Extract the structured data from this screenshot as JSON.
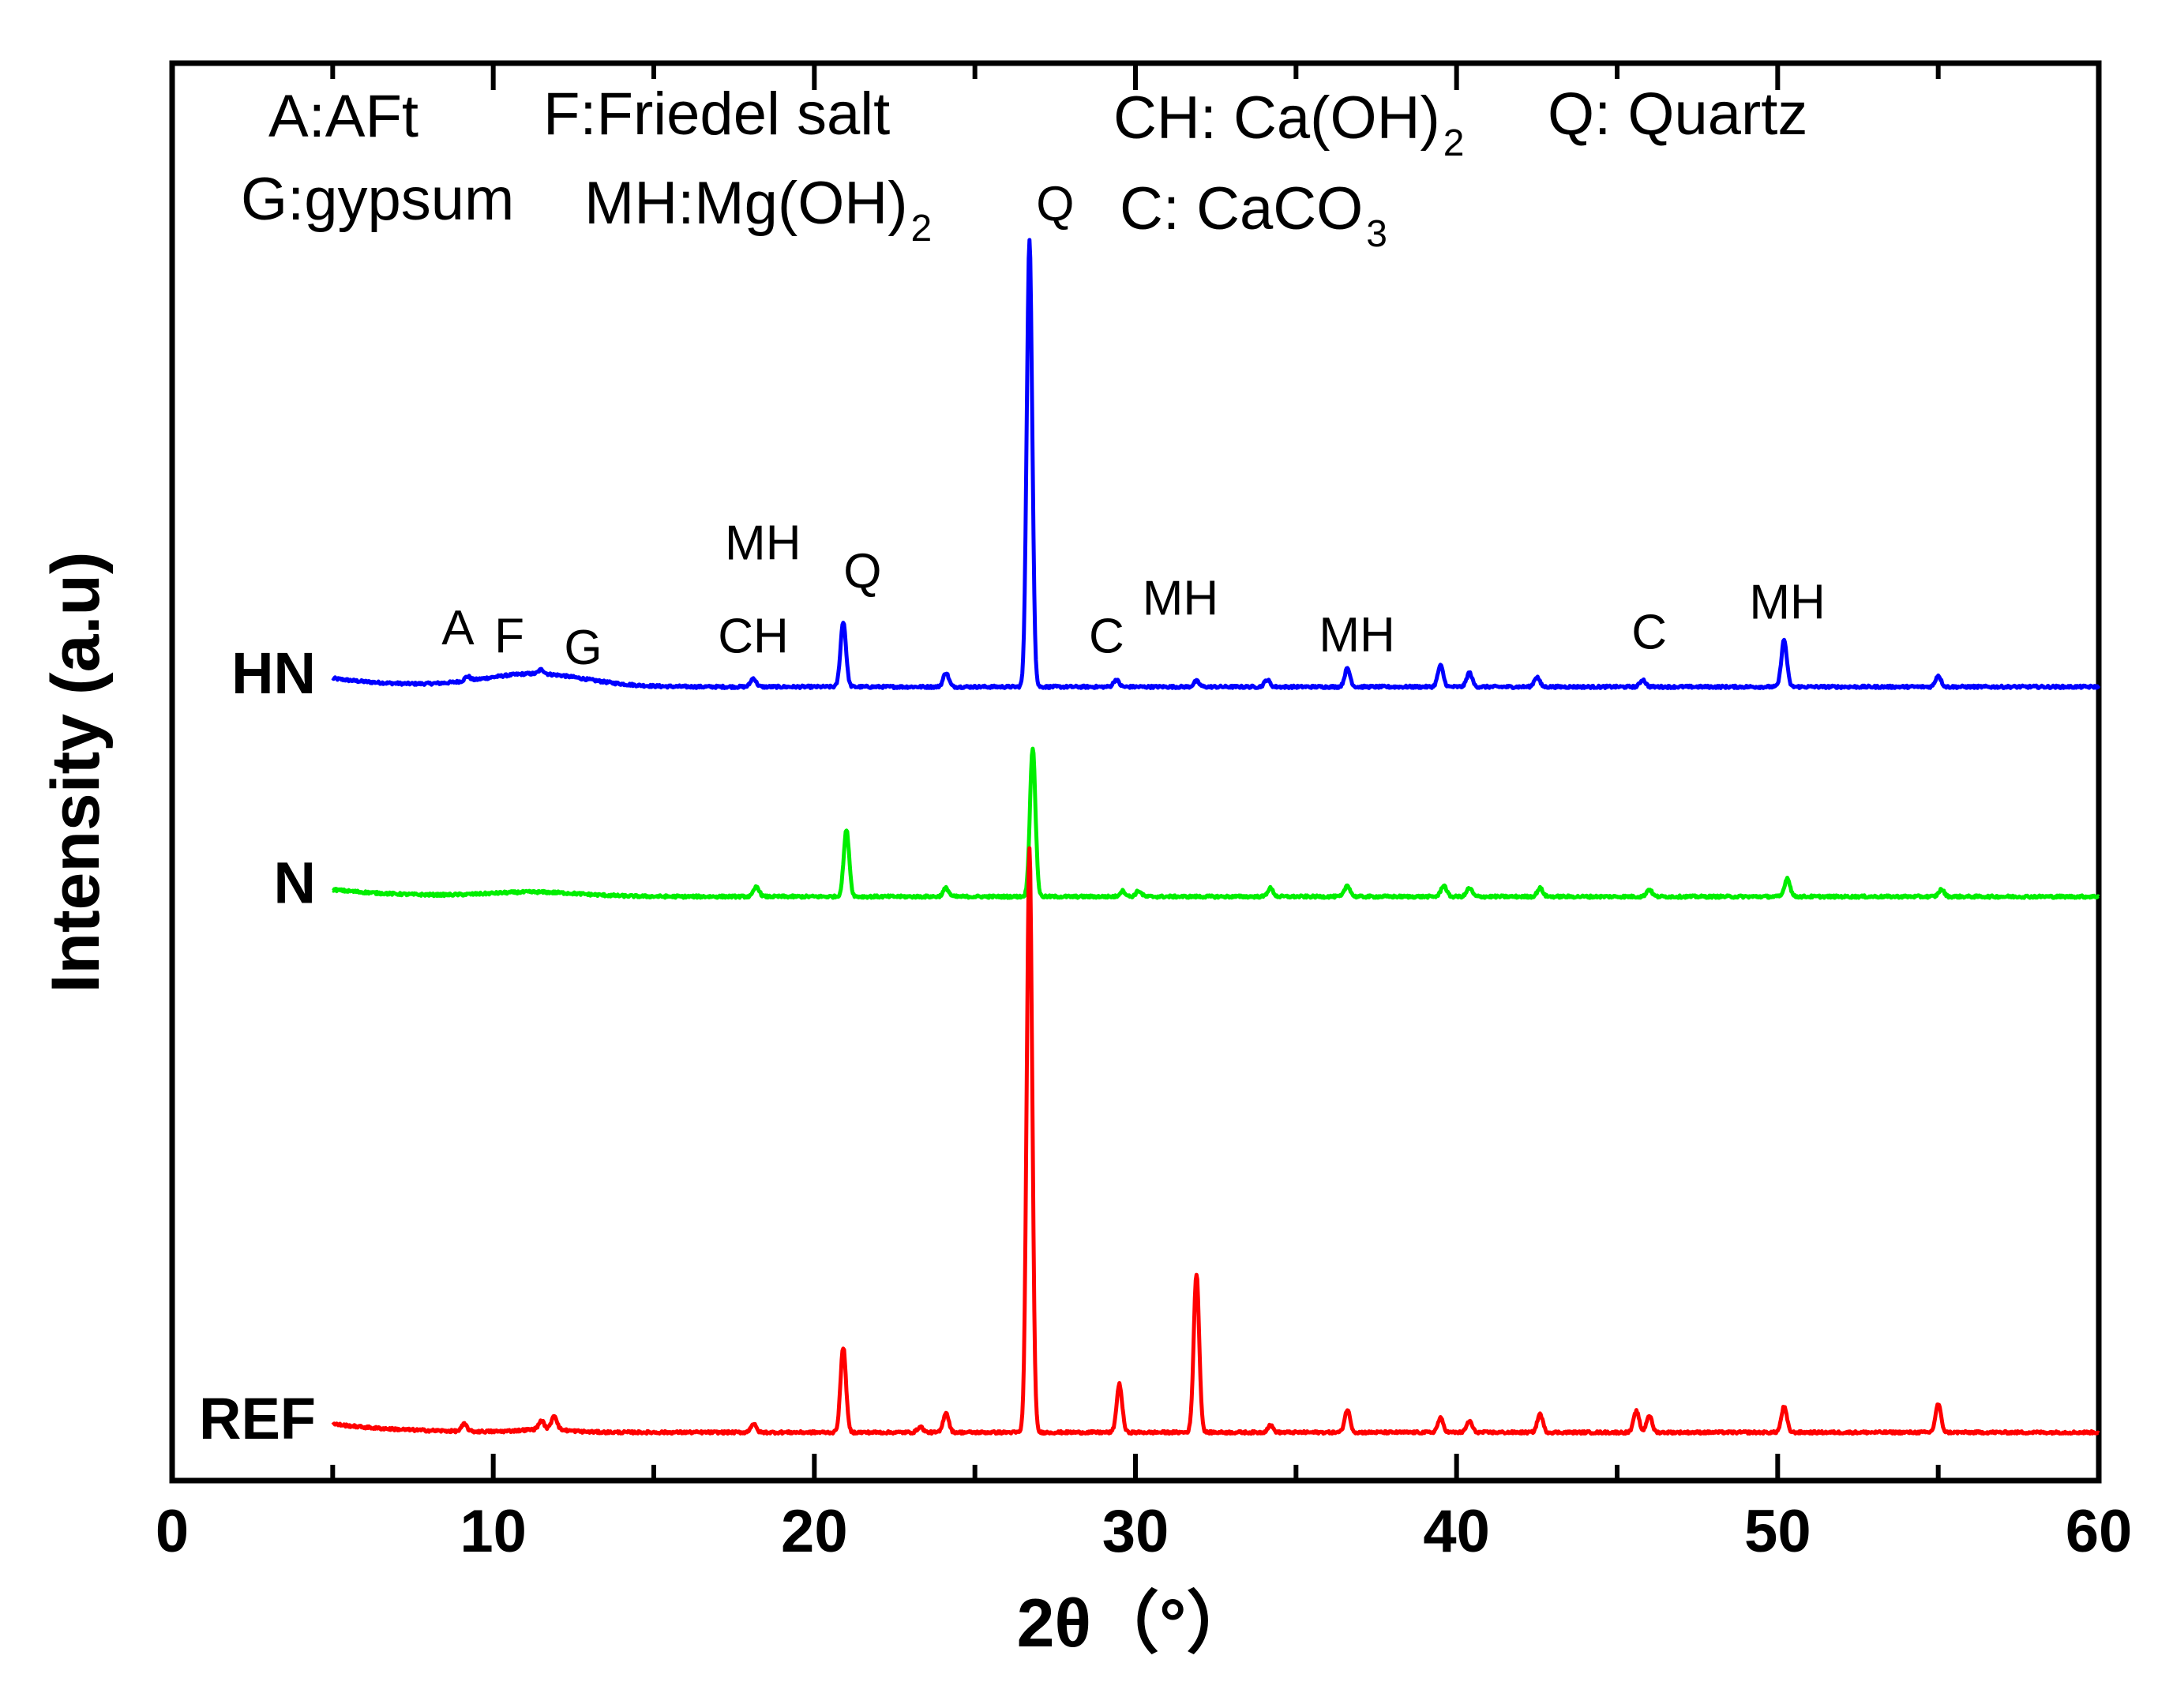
{
  "chart_data": {
    "type": "line",
    "xlabel": "2θ（°）",
    "ylabel": "Intensity (a.u)",
    "xlim": [
      0,
      60
    ],
    "ylim": [
      0,
      100
    ],
    "x_ticks": [
      "0",
      "10",
      "20",
      "30",
      "40",
      "50",
      "60"
    ],
    "legend_key": [
      {
        "text": "A:AFt"
      },
      {
        "text": "F:Friedel salt"
      },
      {
        "text": "CH: Ca(OH)",
        "sub": "2"
      },
      {
        "text": "Q: Quartz"
      },
      {
        "text": "G:gypsum"
      },
      {
        "text": "MH:Mg(OH)",
        "sub": "2"
      },
      {
        "text": "C: CaCO",
        "sub": "3"
      }
    ],
    "series": [
      {
        "name": "HN",
        "color": "#0000ff",
        "baseline": 56.0,
        "start_offset": 0.6,
        "broad_hump": {
          "center": 11.3,
          "width": 2.2,
          "height": 0.9
        },
        "peaks": [
          {
            "x": 9.2,
            "h": 0.3
          },
          {
            "x": 11.5,
            "h": 0.3
          },
          {
            "x": 18.1,
            "h": 0.6
          },
          {
            "x": 20.9,
            "h": 4.6
          },
          {
            "x": 24.1,
            "h": 1.0
          },
          {
            "x": 26.7,
            "h": 31.5
          },
          {
            "x": 29.4,
            "h": 0.5
          },
          {
            "x": 31.9,
            "h": 0.4
          },
          {
            "x": 34.1,
            "h": 0.5
          },
          {
            "x": 36.6,
            "h": 1.3
          },
          {
            "x": 39.5,
            "h": 1.5
          },
          {
            "x": 40.4,
            "h": 1.0
          },
          {
            "x": 42.5,
            "h": 0.7
          },
          {
            "x": 45.8,
            "h": 0.5
          },
          {
            "x": 50.2,
            "h": 3.3
          },
          {
            "x": 55.0,
            "h": 0.8
          }
        ]
      },
      {
        "name": "N",
        "color": "#00ee00",
        "baseline": 41.2,
        "start_offset": 0.5,
        "broad_hump": {
          "center": 11.3,
          "width": 2.0,
          "height": 0.3
        },
        "peaks": [
          {
            "x": 18.2,
            "h": 0.7
          },
          {
            "x": 21.0,
            "h": 4.7
          },
          {
            "x": 24.1,
            "h": 0.6
          },
          {
            "x": 26.8,
            "h": 10.5
          },
          {
            "x": 29.6,
            "h": 0.4
          },
          {
            "x": 30.1,
            "h": 0.4
          },
          {
            "x": 34.2,
            "h": 0.6
          },
          {
            "x": 36.6,
            "h": 0.8
          },
          {
            "x": 39.6,
            "h": 0.8
          },
          {
            "x": 40.4,
            "h": 0.6
          },
          {
            "x": 42.6,
            "h": 0.6
          },
          {
            "x": 46.0,
            "h": 0.5
          },
          {
            "x": 50.3,
            "h": 1.3
          },
          {
            "x": 55.1,
            "h": 0.5
          }
        ]
      },
      {
        "name": "REF",
        "color": "#ff0000",
        "baseline": 3.4,
        "start_offset": 0.6,
        "broad_hump": {
          "center": 11.6,
          "width": 1.0,
          "height": 0.2
        },
        "peaks": [
          {
            "x": 9.1,
            "h": 0.5
          },
          {
            "x": 11.5,
            "h": 0.6
          },
          {
            "x": 11.9,
            "h": 1.0
          },
          {
            "x": 18.1,
            "h": 0.6
          },
          {
            "x": 20.9,
            "h": 6.0
          },
          {
            "x": 23.3,
            "h": 0.4
          },
          {
            "x": 24.1,
            "h": 1.4
          },
          {
            "x": 26.7,
            "h": 41.3
          },
          {
            "x": 29.5,
            "h": 3.4
          },
          {
            "x": 31.9,
            "h": 11.2
          },
          {
            "x": 34.2,
            "h": 0.5
          },
          {
            "x": 36.6,
            "h": 1.6
          },
          {
            "x": 39.5,
            "h": 1.0
          },
          {
            "x": 40.4,
            "h": 0.8
          },
          {
            "x": 42.6,
            "h": 1.3
          },
          {
            "x": 45.6,
            "h": 1.5
          },
          {
            "x": 46.0,
            "h": 1.2
          },
          {
            "x": 50.2,
            "h": 1.8
          },
          {
            "x": 55.0,
            "h": 2.0
          }
        ]
      }
    ],
    "annotations": [
      {
        "text": "A",
        "x": 8.9,
        "y": 59.0
      },
      {
        "text": "F",
        "x": 10.5,
        "y": 58.4
      },
      {
        "text": "G",
        "x": 12.8,
        "y": 57.6
      },
      {
        "text": "MH",
        "x": 18.4,
        "y": 65.0
      },
      {
        "text": "CH",
        "x": 18.1,
        "y": 58.4
      },
      {
        "text": "Q",
        "x": 21.5,
        "y": 63.0
      },
      {
        "text": "Q",
        "x": 27.5,
        "y": 88.9
      },
      {
        "text": "C",
        "x": 29.1,
        "y": 58.4
      },
      {
        "text": "MH",
        "x": 31.4,
        "y": 61.1
      },
      {
        "text": "MH",
        "x": 36.9,
        "y": 58.5
      },
      {
        "text": "C",
        "x": 46.0,
        "y": 58.7
      },
      {
        "text": "MH",
        "x": 50.3,
        "y": 60.8
      }
    ]
  }
}
